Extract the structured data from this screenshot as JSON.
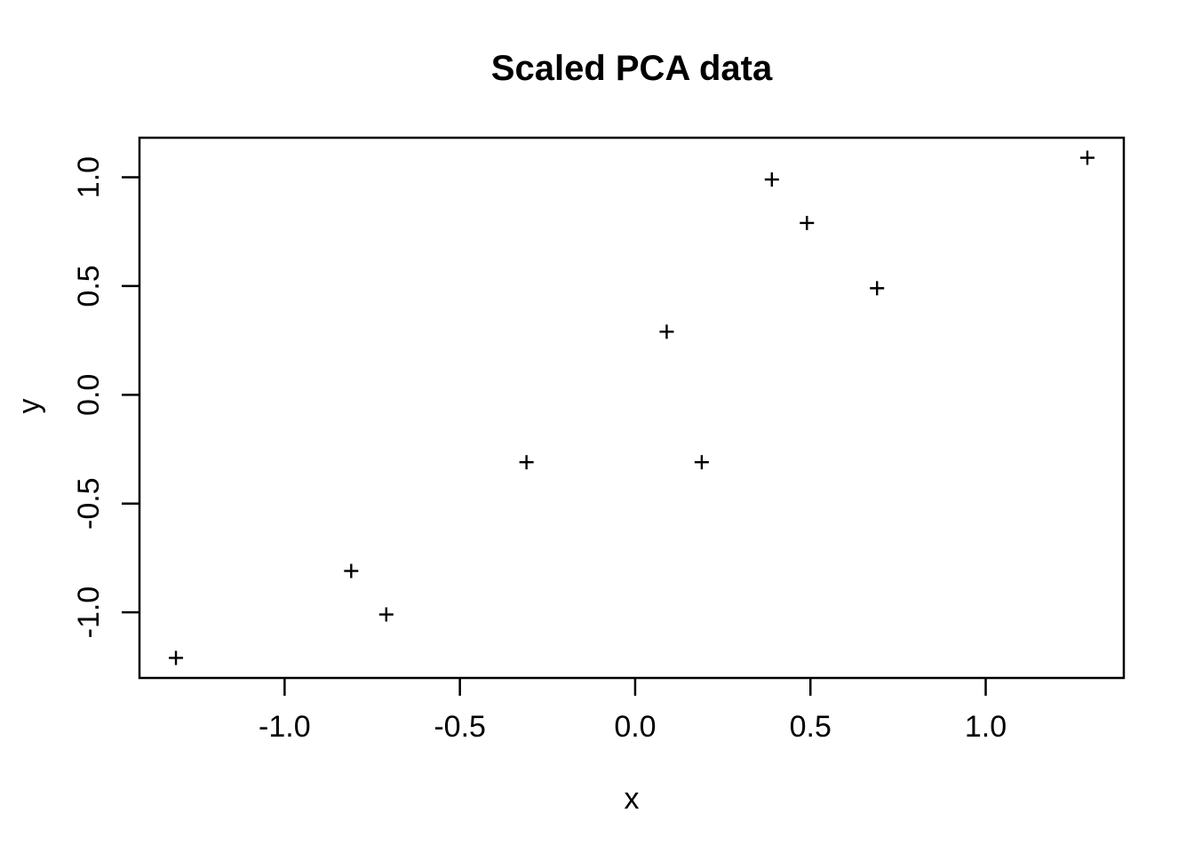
{
  "chart_data": {
    "type": "scatter",
    "title": "Scaled PCA data",
    "xlabel": "x",
    "ylabel": "y",
    "marker": "plus",
    "grid": false,
    "background_color": "#ffffff",
    "axis_color": "#000000",
    "marker_color": "#000000",
    "xlim": [
      -1.414,
      1.394
    ],
    "ylim": [
      -1.302,
      1.182
    ],
    "x_ticks": [
      -1.0,
      -0.5,
      0.0,
      0.5,
      1.0
    ],
    "x_tick_labels": [
      "-1.0",
      "-0.5",
      "0.0",
      "0.5",
      "1.0"
    ],
    "y_ticks": [
      -1.0,
      -0.5,
      0.0,
      0.5,
      1.0
    ],
    "y_tick_labels": [
      "-1.0",
      "-0.5",
      "0.0",
      "0.5",
      "1.0"
    ],
    "points": [
      {
        "x": 0.69,
        "y": 0.49
      },
      {
        "x": -1.31,
        "y": -1.21
      },
      {
        "x": 0.39,
        "y": 0.99
      },
      {
        "x": 0.09,
        "y": 0.29
      },
      {
        "x": 1.29,
        "y": 1.09
      },
      {
        "x": 0.49,
        "y": 0.79
      },
      {
        "x": 0.19,
        "y": -0.31
      },
      {
        "x": -0.81,
        "y": -0.81
      },
      {
        "x": -0.31,
        "y": -0.31
      },
      {
        "x": -0.71,
        "y": -1.01
      }
    ]
  }
}
